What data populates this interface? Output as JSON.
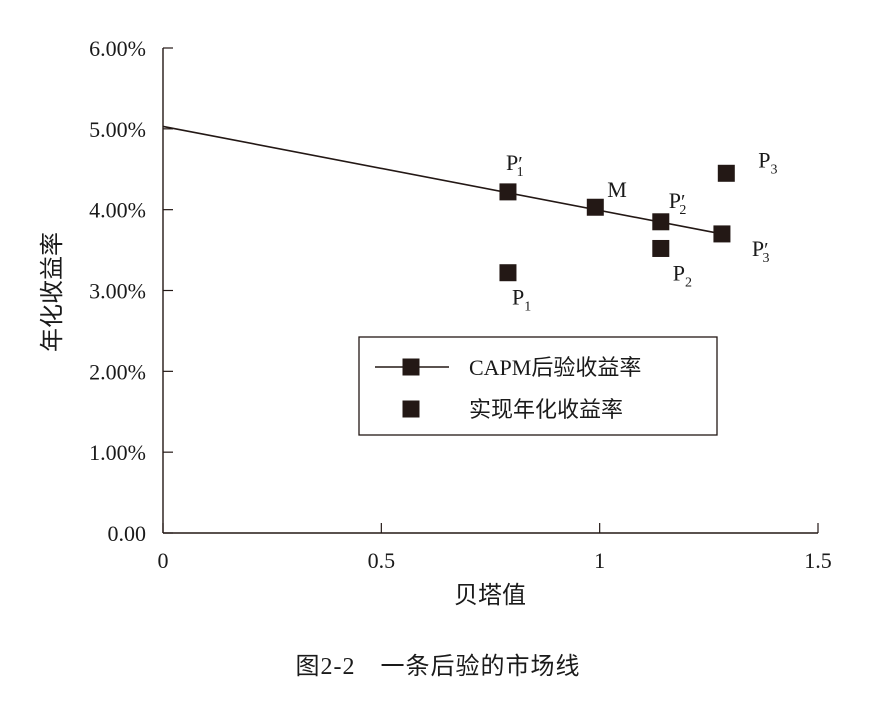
{
  "chart_data": {
    "type": "scatter",
    "xlabel": "贝塔值",
    "ylabel": "年化收益率",
    "xlim": [
      0,
      1.5
    ],
    "ylim": [
      0,
      6
    ],
    "x_ticks": [
      "0",
      "0.5",
      "1",
      "1.5"
    ],
    "y_ticks": [
      "0.00",
      "1.00%",
      "2.00%",
      "3.00%",
      "4.00%",
      "5.00%",
      "6.00%"
    ],
    "grid": false,
    "legend_position": "center",
    "series": [
      {
        "name": "CAPM后验收益率",
        "style": "line-with-markers",
        "color": "#231815",
        "line": [
          [
            0,
            5.03
          ],
          [
            1.28,
            3.7
          ]
        ],
        "points": [
          {
            "label": "P1′",
            "x": 0.79,
            "y": 4.22
          },
          {
            "label": "M",
            "x": 0.99,
            "y": 4.03
          },
          {
            "label": "P2′",
            "x": 1.14,
            "y": 3.85
          },
          {
            "label": "P3′",
            "x": 1.28,
            "y": 3.7
          }
        ]
      },
      {
        "name": "实现年化收益率",
        "style": "markers",
        "color": "#231815",
        "points": [
          {
            "label": "P1",
            "x": 0.79,
            "y": 3.22
          },
          {
            "label": "P2",
            "x": 1.14,
            "y": 3.52
          },
          {
            "label": "P3",
            "x": 1.29,
            "y": 4.45
          }
        ]
      }
    ]
  },
  "caption": "图2-2　一条后验的市场线"
}
